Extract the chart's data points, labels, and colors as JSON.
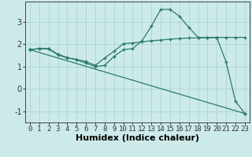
{
  "xlabel": "Humidex (Indice chaleur)",
  "bg_color": "#cdeaea",
  "line_color": "#2a7a6a",
  "grid_color": "#aad4d4",
  "xlim": [
    -0.5,
    23.5
  ],
  "ylim": [
    -1.5,
    3.9
  ],
  "line1_x": [
    0,
    1,
    2,
    3,
    4,
    5,
    6,
    7,
    8,
    9,
    10,
    11,
    12,
    13,
    14,
    15,
    16,
    17,
    18,
    19,
    20,
    21,
    22,
    23
  ],
  "line1_y": [
    1.75,
    1.8,
    1.8,
    1.55,
    1.4,
    1.3,
    1.15,
    1.0,
    1.05,
    1.45,
    1.75,
    1.8,
    2.15,
    2.8,
    3.55,
    3.55,
    3.25,
    2.75,
    2.3,
    2.28,
    2.3,
    1.2,
    -0.55,
    -1.1
  ],
  "line2_x": [
    0,
    1,
    2,
    3,
    4,
    5,
    6,
    7,
    8,
    9,
    10,
    11,
    12,
    13,
    14,
    15,
    16,
    17,
    18,
    19,
    20,
    21,
    22,
    23
  ],
  "line2_y": [
    1.75,
    1.8,
    1.78,
    1.52,
    1.38,
    1.32,
    1.22,
    1.05,
    1.38,
    1.68,
    2.02,
    2.05,
    2.1,
    2.15,
    2.18,
    2.22,
    2.25,
    2.27,
    2.28,
    2.29,
    2.3,
    2.3,
    2.3,
    2.3
  ],
  "line3_x": [
    0,
    23
  ],
  "line3_y": [
    1.75,
    -1.1
  ],
  "xtick_fontsize": 6.5,
  "ytick_fontsize": 7,
  "xlabel_fontsize": 8
}
